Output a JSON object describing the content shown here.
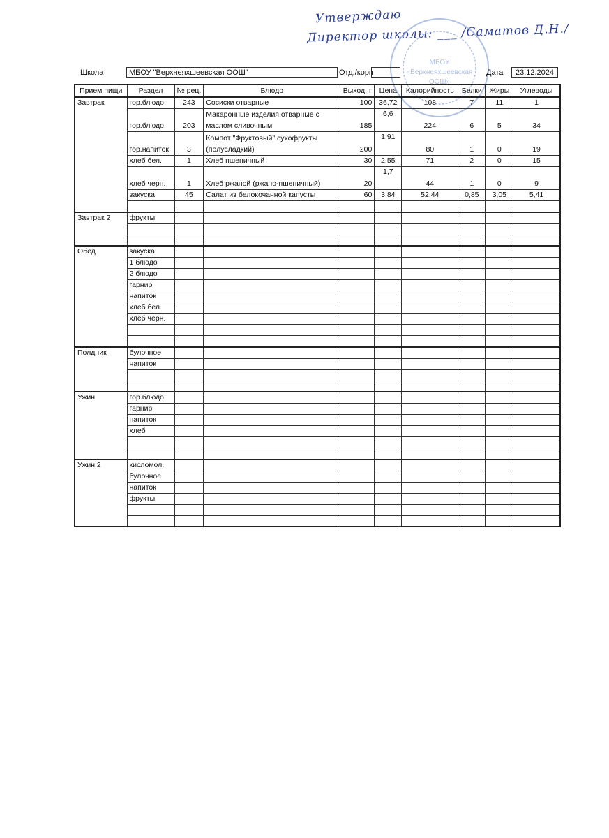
{
  "approval": {
    "line1": "Утверждаю",
    "line2": "Директор школы: ___ /Саматов Д.Н./"
  },
  "stamp": {
    "center": "МБОУ \"Верхнеяхшеевская ООШ\"",
    "color": "#6f8fd0"
  },
  "header": {
    "school_label": "Школа",
    "school_value": "МБОУ \"Верхнеяхшеевская ООШ\"",
    "dept_label": "Отд./корп",
    "dept_value": "",
    "date_label": "Дата",
    "date_value": "23.12.2024"
  },
  "columns": [
    "Прием пищи",
    "Раздел",
    "№ рец.",
    "Блюдо",
    "Выход, г",
    "Цена",
    "Калорийность",
    "Белки",
    "Жиры",
    "Углеводы"
  ],
  "meals": [
    {
      "name": "Завтрак",
      "rows": [
        {
          "section": "гор.блюдо",
          "recipe": "243",
          "dish": "Сосиски отварные",
          "output": "100",
          "price": "36,72",
          "kcal": "108",
          "protein": "7",
          "fat": "11",
          "carb": "1"
        },
        {
          "section": "гор.блюдо",
          "recipe": "203",
          "dish": "Макаронные изделия отварные с маслом сливочным",
          "output": "185",
          "price": "6,6",
          "kcal": "224",
          "protein": "6",
          "fat": "5",
          "carb": "34"
        },
        {
          "section": "гор.напиток",
          "recipe": "3",
          "dish": "Компот \"Фруктовый\" сухофрукты (полусладкий)",
          "output": "200",
          "price": "1,91",
          "kcal": "80",
          "protein": "1",
          "fat": "0",
          "carb": "19"
        },
        {
          "section": "хлеб бел.",
          "recipe": "1",
          "dish": "Хлеб пшеничный",
          "output": "30",
          "price": "2,55",
          "kcal": "71",
          "protein": "2",
          "fat": "0",
          "carb": "15"
        },
        {
          "section": "хлеб черн.",
          "recipe": "1",
          "dish": "Хлеб ржаной (ржано-пшеничный)",
          "output": "20",
          "price": "1,7",
          "kcal": "44",
          "protein": "1",
          "fat": "0",
          "carb": "9"
        },
        {
          "section": "закуска",
          "recipe": "45",
          "dish": "Салат из белокочанной капусты",
          "output": "60",
          "price": "3,84",
          "kcal": "52,44",
          "protein": "0,85",
          "fat": "3,05",
          "carb": "5,41"
        },
        {
          "section": ""
        }
      ]
    },
    {
      "name": "Завтрак 2",
      "rows": [
        {
          "section": "фрукты"
        },
        {
          "section": ""
        },
        {
          "section": ""
        }
      ]
    },
    {
      "name": "Обед",
      "rows": [
        {
          "section": "закуска"
        },
        {
          "section": "1 блюдо"
        },
        {
          "section": "2 блюдо"
        },
        {
          "section": "гарнир"
        },
        {
          "section": "напиток"
        },
        {
          "section": "хлеб бел."
        },
        {
          "section": "хлеб черн."
        },
        {
          "section": ""
        },
        {
          "section": ""
        }
      ]
    },
    {
      "name": "Полдник",
      "rows": [
        {
          "section": "булочное"
        },
        {
          "section": "напиток"
        },
        {
          "section": ""
        },
        {
          "section": ""
        }
      ]
    },
    {
      "name": "Ужин",
      "rows": [
        {
          "section": "гор.блюдо"
        },
        {
          "section": "гарнир"
        },
        {
          "section": "напиток"
        },
        {
          "section": "хлеб"
        },
        {
          "section": ""
        },
        {
          "section": ""
        }
      ]
    },
    {
      "name": "Ужин 2",
      "rows": [
        {
          "section": "кисломол."
        },
        {
          "section": "булочное"
        },
        {
          "section": "напиток"
        },
        {
          "section": "фрукты"
        },
        {
          "section": ""
        },
        {
          "section": ""
        }
      ]
    }
  ]
}
